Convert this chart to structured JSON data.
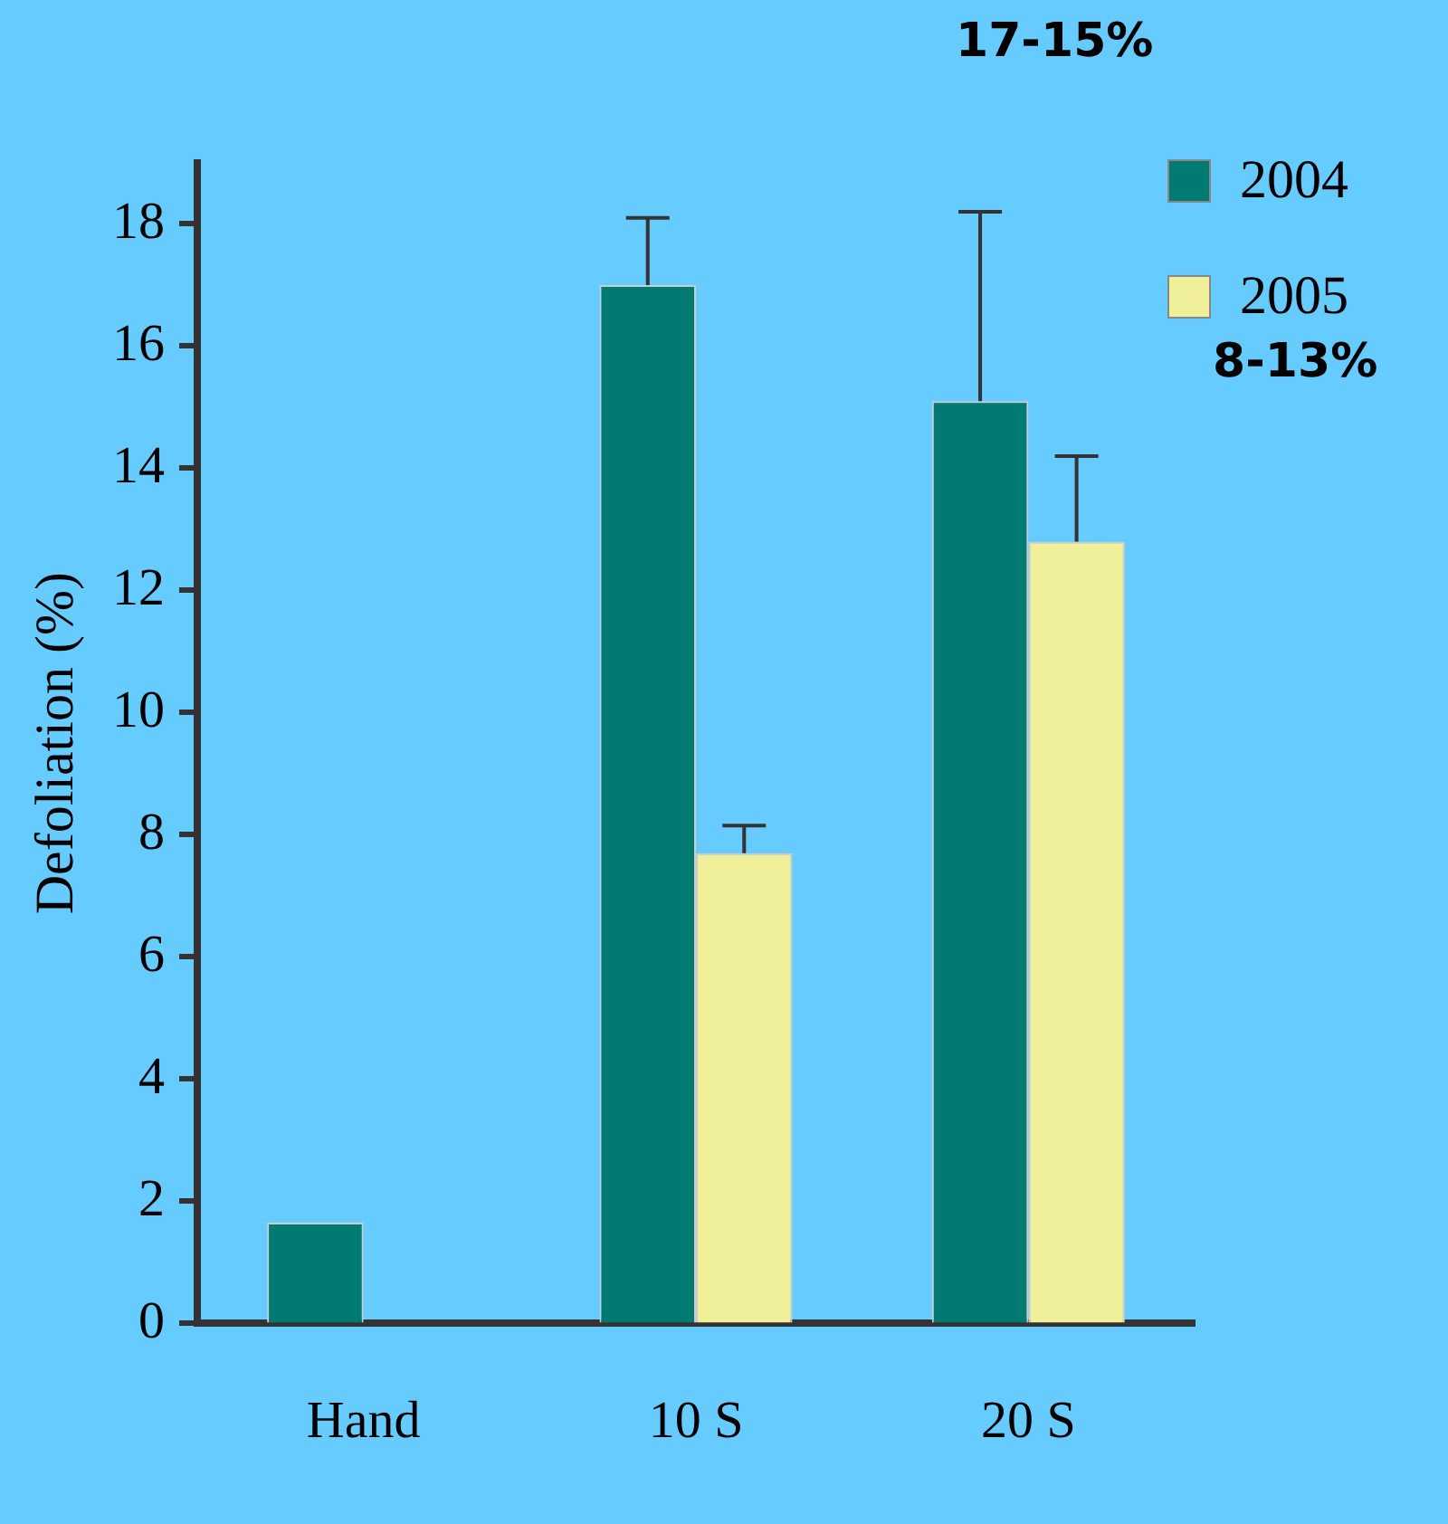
{
  "chart_data": {
    "type": "bar",
    "ylabel": "Defoliation (%)",
    "categories": [
      "Hand",
      "10 S",
      "20 S"
    ],
    "series": [
      {
        "name": "2004",
        "color": "#007a73",
        "values": [
          1.65,
          17.0,
          15.1
        ],
        "errors": [
          null,
          [
            17.0,
            18.1
          ],
          [
            15.1,
            18.2
          ]
        ]
      },
      {
        "name": "2005",
        "color": "#f0ef9a",
        "values": [
          null,
          7.7,
          12.8
        ],
        "errors": [
          null,
          [
            7.7,
            8.15
          ],
          [
            12.8,
            14.2
          ]
        ]
      }
    ],
    "ylim": [
      0,
      19
    ],
    "yticks": [
      0,
      2,
      4,
      6,
      8,
      10,
      12,
      14,
      16,
      18
    ],
    "grid": false,
    "legend": "top right",
    "annotations": [
      "17-15%",
      "8-13%"
    ]
  }
}
